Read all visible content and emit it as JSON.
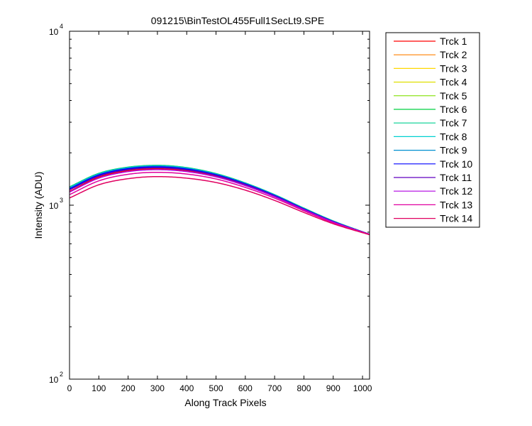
{
  "chart_data": {
    "type": "line",
    "title": "091215\\BinTestOL455Full1SecLt9.SPE",
    "xlabel": "Along Track Pixels",
    "ylabel": "Intensity (ADU)",
    "xlim": [
      0,
      1024
    ],
    "ylim": [
      100,
      10000
    ],
    "yscale": "log",
    "grid": false,
    "legend_position": "outside-top-right",
    "x_ticks": [
      0,
      100,
      200,
      300,
      400,
      500,
      600,
      700,
      800,
      900,
      1000
    ],
    "x_tick_labels": [
      "0",
      "100",
      "200",
      "300",
      "400",
      "500",
      "600",
      "700",
      "800",
      "900",
      "1000"
    ],
    "y_ticks": [
      {
        "value": 100,
        "base": "10",
        "exp": "2"
      },
      {
        "value": 1000,
        "base": "10",
        "exp": "3"
      },
      {
        "value": 10000,
        "base": "10",
        "exp": "4"
      }
    ],
    "x": [
      0,
      100,
      200,
      300,
      400,
      500,
      600,
      700,
      800,
      900,
      1024
    ],
    "series": [
      {
        "name": "Trck 1",
        "color": "#ff0000",
        "values": [
          1200,
          1450,
          1580,
          1620,
          1580,
          1470,
          1300,
          1120,
          940,
          800,
          680
        ]
      },
      {
        "name": "Trck 2",
        "color": "#ff8000",
        "values": [
          1230,
          1480,
          1610,
          1650,
          1600,
          1490,
          1320,
          1130,
          950,
          805,
          680
        ]
      },
      {
        "name": "Trck 3",
        "color": "#ffd700",
        "values": [
          1250,
          1500,
          1630,
          1670,
          1620,
          1500,
          1330,
          1140,
          955,
          808,
          680
        ]
      },
      {
        "name": "Trck 4",
        "color": "#e0e000",
        "values": [
          1260,
          1510,
          1640,
          1680,
          1630,
          1510,
          1335,
          1145,
          958,
          810,
          680
        ]
      },
      {
        "name": "Trck 5",
        "color": "#80e000",
        "values": [
          1270,
          1520,
          1650,
          1690,
          1640,
          1515,
          1340,
          1148,
          960,
          810,
          680
        ]
      },
      {
        "name": "Trck 6",
        "color": "#00d040",
        "values": [
          1275,
          1525,
          1655,
          1695,
          1645,
          1520,
          1343,
          1150,
          962,
          812,
          680
        ]
      },
      {
        "name": "Trck 7",
        "color": "#00d090",
        "values": [
          1270,
          1520,
          1650,
          1690,
          1640,
          1515,
          1340,
          1148,
          960,
          810,
          680
        ]
      },
      {
        "name": "Trck 8",
        "color": "#00d0d0",
        "values": [
          1265,
          1515,
          1645,
          1685,
          1638,
          1512,
          1338,
          1147,
          959,
          810,
          680
        ]
      },
      {
        "name": "Trck 9",
        "color": "#0090d0",
        "values": [
          1255,
          1505,
          1635,
          1675,
          1628,
          1505,
          1332,
          1142,
          956,
          808,
          680
        ]
      },
      {
        "name": "Trck 10",
        "color": "#0000ff",
        "values": [
          1240,
          1490,
          1620,
          1660,
          1612,
          1495,
          1325,
          1137,
          952,
          806,
          680
        ]
      },
      {
        "name": "Trck 11",
        "color": "#6000c0",
        "values": [
          1225,
          1470,
          1600,
          1640,
          1595,
          1482,
          1315,
          1130,
          948,
          803,
          680
        ]
      },
      {
        "name": "Trck 12",
        "color": "#b000e0",
        "values": [
          1190,
          1430,
          1560,
          1600,
          1560,
          1455,
          1295,
          1118,
          940,
          800,
          680
        ]
      },
      {
        "name": "Trck 13",
        "color": "#e000a0",
        "values": [
          1150,
          1380,
          1505,
          1545,
          1510,
          1415,
          1265,
          1098,
          928,
          792,
          678
        ]
      },
      {
        "name": "Trck 14",
        "color": "#e00060",
        "values": [
          1100,
          1310,
          1420,
          1460,
          1430,
          1350,
          1220,
          1065,
          908,
          782,
          676
        ]
      }
    ]
  }
}
